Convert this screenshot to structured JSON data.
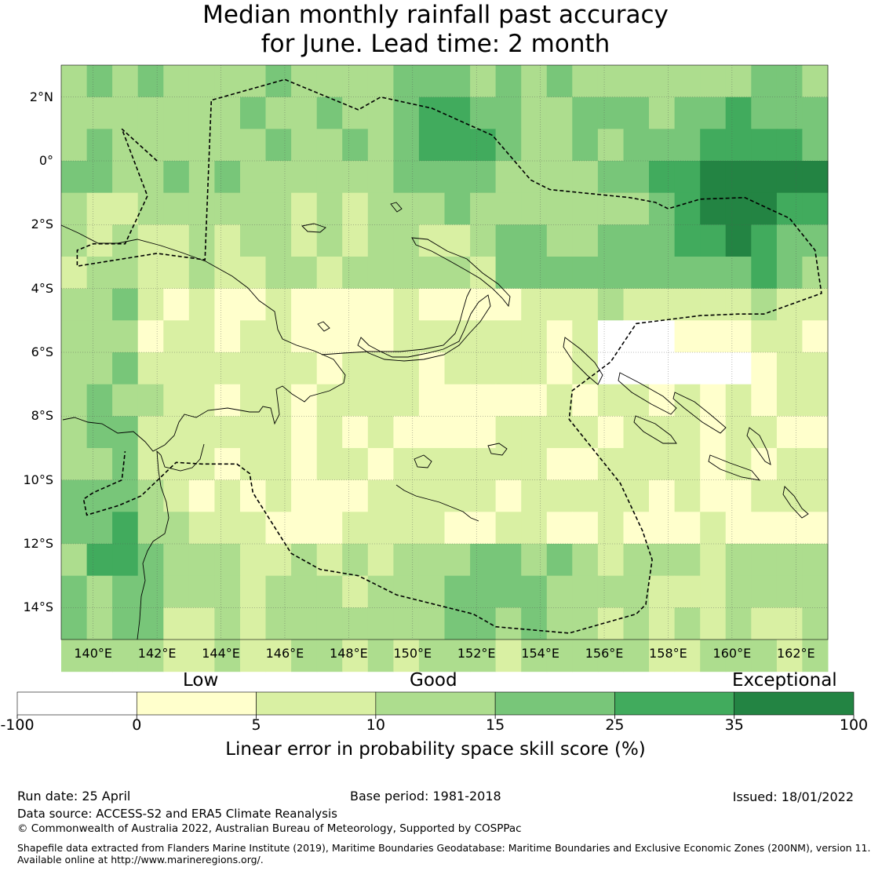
{
  "title_line1": "Median monthly rainfall past accuracy",
  "title_line2": "for June. Lead time: 2 month",
  "map": {
    "lon_min": 139,
    "lon_max": 163,
    "lat_min": -15,
    "lat_max": 3,
    "lat_ticks": [
      {
        "value": 2,
        "label": "2°N"
      },
      {
        "value": 0,
        "label": "0°"
      },
      {
        "value": -2,
        "label": "2°S"
      },
      {
        "value": -4,
        "label": "4°S"
      },
      {
        "value": -6,
        "label": "6°S"
      },
      {
        "value": -8,
        "label": "8°S"
      },
      {
        "value": -10,
        "label": "10°S"
      },
      {
        "value": -12,
        "label": "12°S"
      },
      {
        "value": -14,
        "label": "14°S"
      }
    ],
    "lon_ticks": [
      {
        "value": 140,
        "label": "140°E"
      },
      {
        "value": 142,
        "label": "142°E"
      },
      {
        "value": 144,
        "label": "144°E"
      },
      {
        "value": 146,
        "label": "146°E"
      },
      {
        "value": 148,
        "label": "148°E"
      },
      {
        "value": 150,
        "label": "150°E"
      },
      {
        "value": 152,
        "label": "152°E"
      },
      {
        "value": 154,
        "label": "154°E"
      },
      {
        "value": 156,
        "label": "156°E"
      },
      {
        "value": 158,
        "label": "158°E"
      },
      {
        "value": 160,
        "label": "160°E"
      },
      {
        "value": 162,
        "label": "162°E"
      }
    ],
    "eez_boundary": [
      [
        142.0,
        0.0
      ],
      [
        140.9,
        1.0
      ],
      [
        141.7,
        -1.1
      ],
      [
        141.0,
        -2.6
      ],
      [
        140.0,
        -2.6
      ],
      [
        139.5,
        -2.8
      ],
      [
        139.5,
        -3.3
      ],
      [
        142.0,
        -2.9
      ],
      [
        143.5,
        -3.1
      ],
      [
        143.7,
        1.9
      ],
      [
        146.0,
        2.55
      ],
      [
        148.3,
        1.6
      ],
      [
        149.0,
        2.0
      ],
      [
        150.6,
        1.65
      ],
      [
        152.5,
        0.8
      ],
      [
        153.7,
        -0.6
      ],
      [
        154.3,
        -0.9
      ],
      [
        156.8,
        -1.15
      ],
      [
        157.6,
        -1.3
      ],
      [
        158.0,
        -1.5
      ],
      [
        159.0,
        -1.2
      ],
      [
        160.4,
        -1.15
      ],
      [
        161.8,
        -1.8
      ],
      [
        162.6,
        -2.8
      ],
      [
        162.8,
        -4.15
      ],
      [
        161.0,
        -4.8
      ],
      [
        160.2,
        -4.8
      ],
      [
        159.0,
        -4.85
      ],
      [
        157.0,
        -5.1
      ],
      [
        156.2,
        -6.3
      ],
      [
        155.0,
        -7.2
      ],
      [
        154.9,
        -8.1
      ],
      [
        156.5,
        -10.1
      ],
      [
        157.2,
        -11.6
      ],
      [
        157.5,
        -12.5
      ],
      [
        157.3,
        -13.9
      ],
      [
        157.0,
        -14.2
      ],
      [
        156.3,
        -14.4
      ],
      [
        154.9,
        -14.8
      ],
      [
        152.6,
        -14.6
      ],
      [
        151.9,
        -14.2
      ],
      [
        149.5,
        -13.6
      ],
      [
        148.3,
        -13.0
      ],
      [
        147.1,
        -12.8
      ],
      [
        146.2,
        -12.3
      ],
      [
        145.0,
        -10.4
      ],
      [
        144.9,
        -9.8
      ],
      [
        144.5,
        -9.5
      ],
      [
        143.4,
        -9.5
      ],
      [
        142.6,
        -9.45
      ],
      [
        141.5,
        -10.5
      ],
      [
        140.8,
        -10.8
      ],
      [
        139.8,
        -11.1
      ],
      [
        139.7,
        -10.6
      ],
      [
        140.0,
        -10.4
      ],
      [
        140.9,
        -10.0
      ],
      [
        141.0,
        -9.1
      ]
    ]
  },
  "colorbar": {
    "categories": [
      "Low",
      "Good",
      "Exceptional"
    ],
    "ticks": [
      "-100",
      "0",
      "5",
      "10",
      "15",
      "25",
      "35",
      "100"
    ],
    "colors": [
      "#ffffff",
      "#ffffcc",
      "#d9f0a3",
      "#addd8e",
      "#78c679",
      "#41ab5d",
      "#238443"
    ],
    "title": "Linear error in probability space skill score (%)"
  },
  "footer": {
    "run_date": "Run date: 25 April",
    "base_period": "Base period: 1981-2018",
    "issued": "Issued: 18/01/2022",
    "data_source": "Data source: ACCESS-S2 and ERA5 Climate Reanalysis",
    "copyright": "© Commonwealth of Australia 2022, Australian Bureau of Meteorology, Supported by COSPPac",
    "shapefile_1": "Shapefile data extracted from Flanders Marine Institute (2019), Maritime Boundaries Geodatabase: Maritime Boundaries and Exclusive Economic Zones (200NM), version 11.",
    "shapefile_2": "Available online at http://www.marineregions.org/."
  }
}
